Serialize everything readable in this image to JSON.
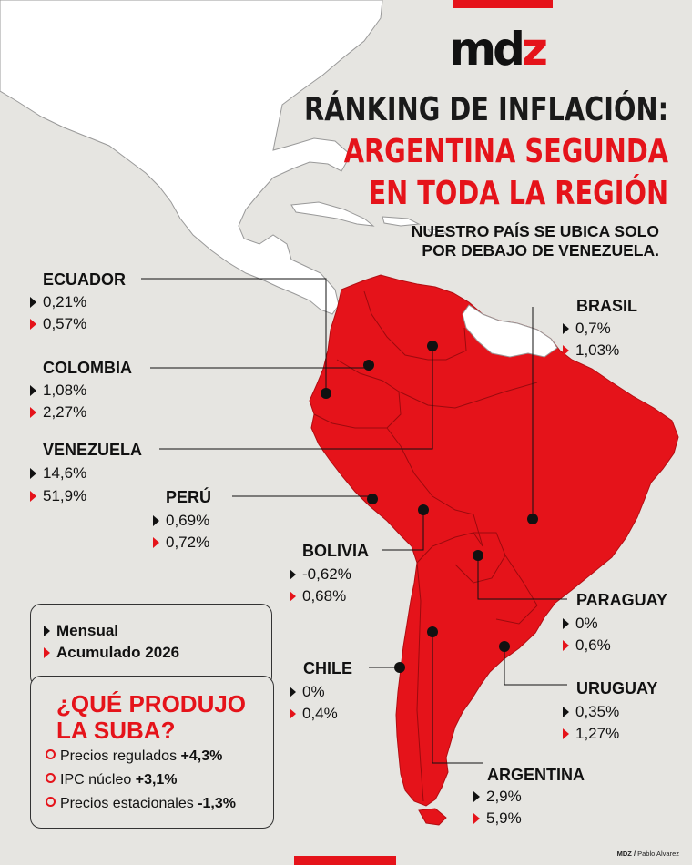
{
  "brand": {
    "logo_main": "md",
    "logo_accent": "z"
  },
  "title": {
    "line1": "RÁNKING DE INFLACIÓN:",
    "line2": "ARGENTINA SEGUNDA",
    "line3": "EN TODA LA REGIÓN"
  },
  "subtitle": {
    "line1": "NUESTRO PAÍS SE UBICA SOLO",
    "line2": "POR DEBAJO DE VENEZUELA."
  },
  "countries": {
    "ecuador": {
      "name": "ECUADOR",
      "monthly": "0,21%",
      "accumulated": "0,57%"
    },
    "colombia": {
      "name": "COLOMBIA",
      "monthly": "1,08%",
      "accumulated": "2,27%"
    },
    "venezuela": {
      "name": "VENEZUELA",
      "monthly": "14,6%",
      "accumulated": "51,9%"
    },
    "peru": {
      "name": "PERÚ",
      "monthly": "0,69%",
      "accumulated": "0,72%"
    },
    "bolivia": {
      "name": "BOLIVIA",
      "monthly": "-0,62%",
      "accumulated": "0,68%"
    },
    "chile": {
      "name": "CHILE",
      "monthly": "0%",
      "accumulated": "0,4%"
    },
    "brasil": {
      "name": "BRASIL",
      "monthly": "0,7%",
      "accumulated": "1,03%"
    },
    "paraguay": {
      "name": "PARAGUAY",
      "monthly": "0%",
      "accumulated": "0,6%"
    },
    "uruguay": {
      "name": "URUGUAY",
      "monthly": "0,35%",
      "accumulated": "1,27%"
    },
    "argentina": {
      "name": "ARGENTINA",
      "monthly": "2,9%",
      "accumulated": "5,9%"
    }
  },
  "legend": {
    "monthly": "Mensual",
    "accumulated": "Acumulado 2026"
  },
  "causes": {
    "heading_line1": "¿QUÉ PRODUJO",
    "heading_line2": "LA SUBA?",
    "items": [
      {
        "label": "Precios regulados",
        "value": "+4,3%"
      },
      {
        "label": "IPC núcleo",
        "value": "+3,1%"
      },
      {
        "label": "Precios estacionales",
        "value": "-1,3%"
      }
    ]
  },
  "credit": {
    "outlet": "MDZ /",
    "author": "Pablo Alvarez"
  },
  "colors": {
    "accent": "#e5131a",
    "background": "#e6e5e1",
    "land": "#ffffff",
    "text": "#111111"
  }
}
